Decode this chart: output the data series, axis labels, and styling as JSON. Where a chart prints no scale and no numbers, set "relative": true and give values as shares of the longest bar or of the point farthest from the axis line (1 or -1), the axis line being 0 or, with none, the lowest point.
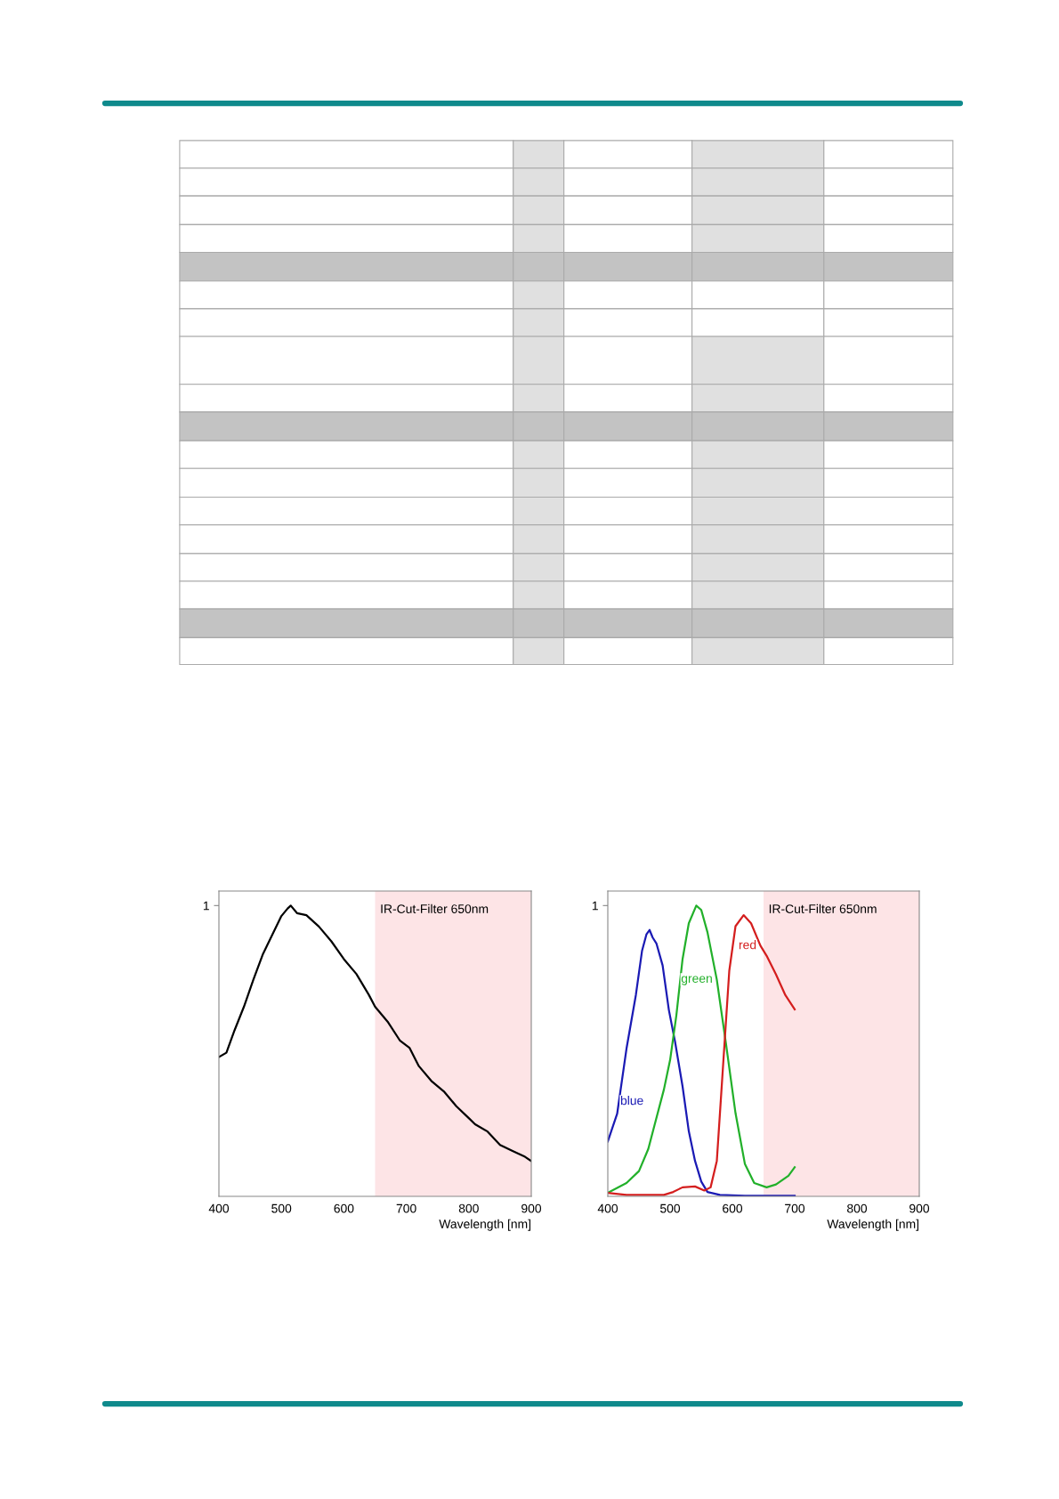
{
  "chart_data": [
    {
      "type": "line",
      "relative": true,
      "xlim": [
        400,
        900
      ],
      "xticks": [
        400,
        500,
        600,
        700,
        800,
        900
      ],
      "xlabel": "Wavelength [nm]",
      "bands": [
        {
          "axis": "x",
          "from": 650,
          "to": 900,
          "label": "IR-Cut-Filter 650nm",
          "color": "#fde4e6"
        }
      ],
      "annotations": [
        "1"
      ],
      "series": [
        {
          "color": "#000000",
          "x": [
            400,
            412,
            425,
            440,
            455,
            470,
            485,
            500,
            510,
            515,
            525,
            540,
            560,
            580,
            600,
            620,
            640,
            650,
            670,
            690,
            705,
            720,
            740,
            760,
            780,
            800,
            810,
            830,
            850,
            870,
            890,
            900
          ],
          "values": [
            0.479,
            0.494,
            0.571,
            0.652,
            0.744,
            0.831,
            0.898,
            0.964,
            0.99,
            1.0,
            0.974,
            0.967,
            0.928,
            0.877,
            0.816,
            0.765,
            0.693,
            0.652,
            0.601,
            0.535,
            0.511,
            0.448,
            0.397,
            0.361,
            0.31,
            0.269,
            0.248,
            0.223,
            0.177,
            0.156,
            0.136,
            0.121
          ]
        }
      ]
    },
    {
      "type": "line",
      "relative": true,
      "xlim": [
        400,
        900
      ],
      "xticks": [
        400,
        500,
        600,
        700,
        800,
        900
      ],
      "xlabel": "Wavelength [nm]",
      "bands": [
        {
          "axis": "x",
          "from": 650,
          "to": 900,
          "label": "IR-Cut-Filter 650nm",
          "color": "#fde4e6"
        }
      ],
      "annotations": [
        "1"
      ],
      "series": [
        {
          "name": "blue",
          "color": "#1a1ab4",
          "x": [
            400,
            415,
            430,
            445,
            455,
            462,
            467,
            472,
            478,
            488,
            498,
            508,
            520,
            530,
            540,
            550,
            560,
            580,
            620,
            700
          ],
          "values": [
            0.189,
            0.284,
            0.508,
            0.692,
            0.845,
            0.901,
            0.916,
            0.89,
            0.87,
            0.794,
            0.641,
            0.531,
            0.378,
            0.224,
            0.122,
            0.051,
            0.015,
            0.005,
            0.002,
            0.002
          ]
        },
        {
          "name": "green",
          "color": "#22b02a",
          "x": [
            400,
            430,
            450,
            465,
            475,
            490,
            500,
            510,
            520,
            530,
            542,
            550,
            560,
            575,
            590,
            605,
            620,
            635,
            655,
            670,
            690,
            700
          ],
          "values": [
            0.012,
            0.046,
            0.087,
            0.163,
            0.245,
            0.367,
            0.469,
            0.622,
            0.816,
            0.939,
            1.0,
            0.985,
            0.908,
            0.745,
            0.52,
            0.286,
            0.112,
            0.046,
            0.031,
            0.041,
            0.071,
            0.1
          ]
        },
        {
          "name": "red",
          "color": "#d41e1e",
          "x": [
            400,
            430,
            490,
            505,
            520,
            540,
            555,
            565,
            575,
            585,
            595,
            605,
            618,
            630,
            645,
            655,
            670,
            685,
            700
          ],
          "values": [
            0.012,
            0.005,
            0.005,
            0.015,
            0.031,
            0.034,
            0.02,
            0.031,
            0.122,
            0.449,
            0.776,
            0.929,
            0.967,
            0.939,
            0.862,
            0.827,
            0.763,
            0.692,
            0.643
          ]
        }
      ]
    }
  ]
}
